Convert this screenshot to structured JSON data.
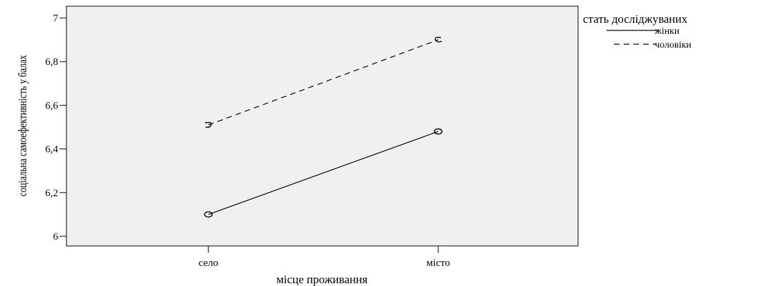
{
  "chart_data": {
    "type": "line",
    "xlabel": "місце проживання",
    "ylabel": "соціальна самоефективність у балах",
    "categories": [
      "село",
      "місто"
    ],
    "ylim": [
      6.0,
      7.0
    ],
    "yticks": [
      6,
      6.2,
      6.4,
      6.6,
      6.8,
      7
    ],
    "ytick_labels": [
      "6",
      "6,2",
      "6,4",
      "6,6",
      "6,8",
      "7"
    ],
    "plot_background": "#f0f0f0",
    "legend": {
      "title": "стать досліджуваних",
      "placement": "top-right, outside plot"
    },
    "series": [
      {
        "name": "жінки",
        "style": "solid",
        "marker": "circle",
        "values": [
          6.1,
          6.48
        ]
      },
      {
        "name": "чоловіки",
        "style": "dashed",
        "marker": "sunflower",
        "values": [
          6.51,
          6.9
        ]
      }
    ]
  }
}
